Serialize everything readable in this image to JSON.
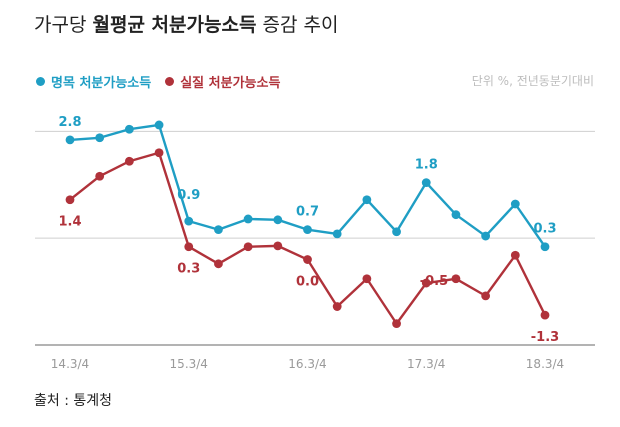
{
  "title": {
    "prefix": "가구당 ",
    "emphasis": "월평균 처분가능소득",
    "suffix": " 증감 추이"
  },
  "unit_note": "단위 %, 전년동분기대비",
  "source": "출처 : 통계청",
  "colors": {
    "nominal": "#1f9ec4",
    "real": "#b0323a",
    "grid": "#cfcfcf",
    "axis": "#9a9a9a",
    "tick": "#9a9a9a"
  },
  "chart_data": {
    "type": "line",
    "x": [
      "14.3/4",
      "14.4/4",
      "15.1/4",
      "15.2/4",
      "15.3/4",
      "15.4/4",
      "16.1/4",
      "16.2/4",
      "16.3/4",
      "16.4/4",
      "17.1/4",
      "17.2/4",
      "17.3/4",
      "17.4/4",
      "18.1/4",
      "18.2/4",
      "18.3/4"
    ],
    "tick_labels": [
      "14.3/4",
      "15.3/4",
      "16.3/4",
      "17.3/4",
      "18.3/4"
    ],
    "ylim": [
      -2.0,
      3.5
    ],
    "gridlines": [
      -2.0,
      0.5,
      3.0
    ],
    "series": [
      {
        "name": "명목 처분가능소득",
        "color": "#1f9ec4",
        "values": [
          2.8,
          2.85,
          3.05,
          3.15,
          0.9,
          0.7,
          0.95,
          0.93,
          0.7,
          0.6,
          1.4,
          0.65,
          1.8,
          1.05,
          0.55,
          1.3,
          0.3
        ],
        "labels": [
          {
            "i": 0,
            "text": "2.8"
          },
          {
            "i": 4,
            "text": "0.9"
          },
          {
            "i": 8,
            "text": "0.7"
          },
          {
            "i": 12,
            "text": "1.8"
          },
          {
            "i": 16,
            "text": "0.3"
          }
        ]
      },
      {
        "name": "실질 처분가능소득",
        "color": "#b0323a",
        "values": [
          1.4,
          1.95,
          2.3,
          2.5,
          0.3,
          -0.1,
          0.3,
          0.32,
          0.0,
          -1.1,
          -0.45,
          -1.5,
          -0.55,
          -0.45,
          -0.85,
          0.1,
          -1.3
        ],
        "labels": [
          {
            "i": 0,
            "text": "1.4"
          },
          {
            "i": 4,
            "text": "0.3"
          },
          {
            "i": 8,
            "text": "0.0"
          },
          {
            "i": 13,
            "text": "-0.5"
          },
          {
            "i": 16,
            "text": "-1.3"
          }
        ]
      }
    ]
  }
}
